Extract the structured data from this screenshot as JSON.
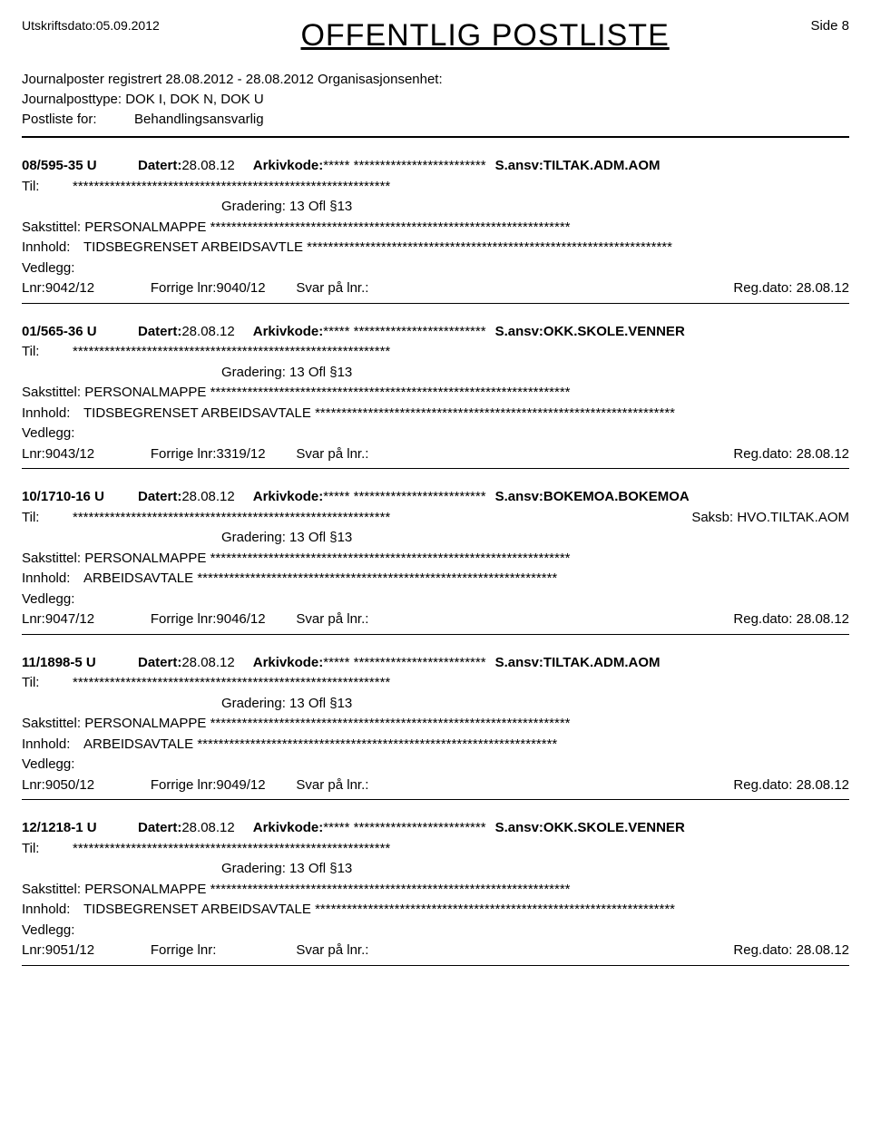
{
  "header": {
    "print_date_label": "Utskriftsdato:",
    "print_date_value": "05.09.2012",
    "title": "OFFENTLIG POSTLISTE",
    "page_label": "Side 8"
  },
  "meta": {
    "line1a": "Journalposter registrert ",
    "line1b": "28.08.2012 - 28.08.2012",
    "line1c": " Organisasjonsenhet:",
    "line2a": "Journalposttype:",
    "line2b": " DOK I, DOK N, DOK U",
    "line3a": "Postliste for:",
    "line3b": "Behandlingsansvarlig"
  },
  "labels": {
    "datert": "Datert: ",
    "arkivkode": "Arkivkode:",
    "sansv": "S.ansv:",
    "til": "Til:",
    "saksb": "Saksb:  ",
    "gradering": "Gradering: 13 Ofl §13",
    "sakstittel": "Sakstittel: ",
    "innhold": "Innhold:",
    "vedlegg": "Vedlegg:",
    "lnr": "Lnr:",
    "forrige": "Forrige lnr:",
    "svar": "Svar på lnr.:",
    "reg": "Reg.dato: "
  },
  "entries": [
    {
      "case_id": "08/595-35 U",
      "datert": "28.08.12",
      "arkivkode": "***** *************************",
      "sansv": "TILTAK.ADM.AOM",
      "til": "************************************************************",
      "saksb": "",
      "sakstittel": "PERSONALMAPPE  ********************************************************************",
      "innhold": "TIDSBEGRENSET ARBEIDSAVTLE  *********************************************************************",
      "lnr": "9042/12",
      "forrige": "9040/12",
      "reg": "28.08.12"
    },
    {
      "case_id": "01/565-36 U",
      "datert": "28.08.12",
      "arkivkode": "***** *************************",
      "sansv": "OKK.SKOLE.VENNER",
      "til": "************************************************************",
      "saksb": "",
      "sakstittel": "PERSONALMAPPE  ********************************************************************",
      "innhold": "TIDSBEGRENSET ARBEIDSAVTALE  ********************************************************************",
      "lnr": "9043/12",
      "forrige": "3319/12",
      "reg": "28.08.12"
    },
    {
      "case_id": "10/1710-16 U",
      "datert": "28.08.12",
      "arkivkode": "***** *************************",
      "sansv": "BOKEMOA.BOKEMOA",
      "til": "************************************************************",
      "saksb": "HVO.TILTAK.AOM",
      "sakstittel": "PERSONALMAPPE  ********************************************************************",
      "innhold": "ARBEIDSAVTALE  ********************************************************************",
      "lnr": "9047/12",
      "forrige": "9046/12",
      "reg": "28.08.12"
    },
    {
      "case_id": "11/1898-5 U",
      "datert": "28.08.12",
      "arkivkode": "***** *************************",
      "sansv": "TILTAK.ADM.AOM",
      "til": "************************************************************",
      "saksb": "",
      "sakstittel": "PERSONALMAPPE  ********************************************************************",
      "innhold": "ARBEIDSAVTALE  ********************************************************************",
      "lnr": "9050/12",
      "forrige": "9049/12",
      "reg": "28.08.12"
    },
    {
      "case_id": "12/1218-1 U",
      "datert": "28.08.12",
      "arkivkode": "***** *************************",
      "sansv": "OKK.SKOLE.VENNER",
      "til": "************************************************************",
      "saksb": "",
      "sakstittel": "PERSONALMAPPE  ********************************************************************",
      "innhold": "TIDSBEGRENSET ARBEIDSAVTALE  ********************************************************************",
      "lnr": "9051/12",
      "forrige": "",
      "reg": "28.08.12"
    }
  ]
}
